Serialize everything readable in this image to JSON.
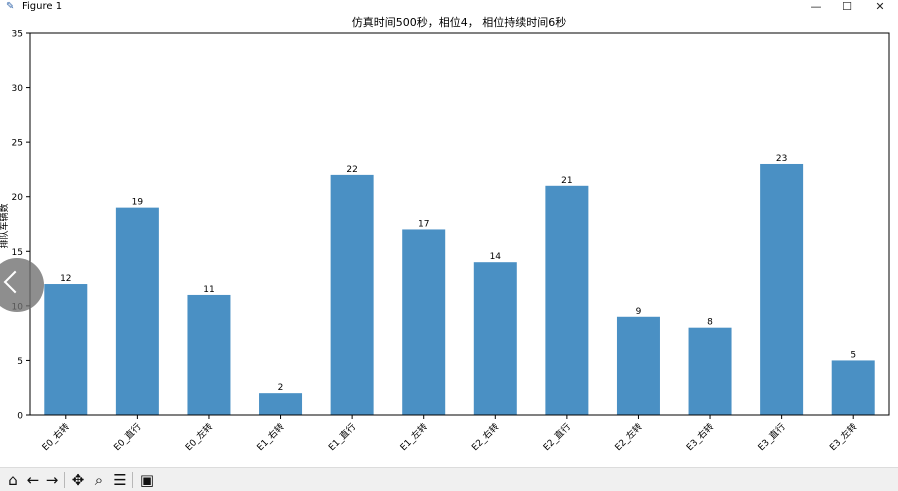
{
  "window": {
    "title": "Figure 1",
    "controls": {
      "minimize": "—",
      "maximize": "☐",
      "close": "✕"
    }
  },
  "toolbar": {
    "icons": [
      "home-icon",
      "back-icon",
      "forward-icon",
      "pan-icon",
      "zoom-icon",
      "configure-icon",
      "save-icon"
    ]
  },
  "chart_data": {
    "type": "bar",
    "title": "仿真时间500秒，相位4， 相位持续时间6秒",
    "xlabel": "",
    "ylabel": "排队车辆数",
    "categories": [
      "E0_右转",
      "E0_直行",
      "E0_左转",
      "E1_右转",
      "E1_直行",
      "E1_左转",
      "E2_右转",
      "E2_直行",
      "E2_左转",
      "E3_右转",
      "E3_直行",
      "E3_左转"
    ],
    "values": [
      12,
      19,
      11,
      2,
      22,
      17,
      14,
      21,
      9,
      8,
      23,
      5
    ],
    "data_labels": [
      "12",
      "19",
      "11",
      "2",
      "22",
      "17",
      "14",
      "21",
      "9",
      "8",
      "23",
      "5"
    ],
    "ylim": [
      0,
      35
    ],
    "yticks": [
      "0",
      "5",
      "10",
      "15",
      "20",
      "25",
      "30",
      "35"
    ],
    "bar_color": "#4a90c4",
    "grid": false,
    "legend": "none"
  }
}
